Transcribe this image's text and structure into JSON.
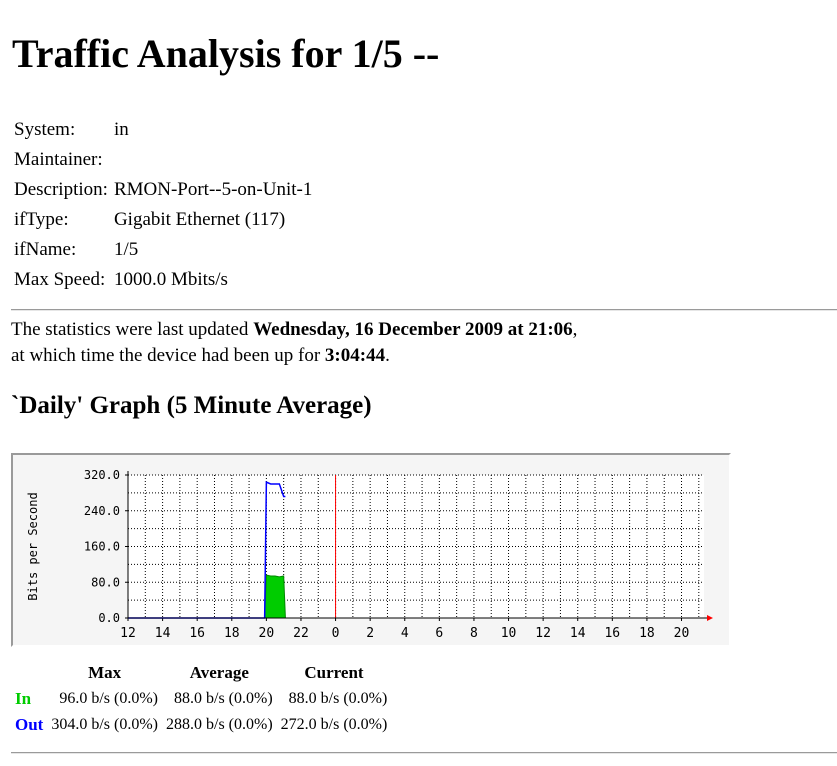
{
  "page": {
    "title": "Traffic Analysis for 1/5 --"
  },
  "info": {
    "rows": [
      {
        "label": "System:",
        "value": "in"
      },
      {
        "label": "Maintainer:",
        "value": ""
      },
      {
        "label": "Description:",
        "value": "RMON-Port--5-on-Unit-1"
      },
      {
        "label": "ifType:",
        "value": "Gigabit Ethernet (117)"
      },
      {
        "label": "ifName:",
        "value": "1/5"
      },
      {
        "label": "Max Speed:",
        "value": "1000.0 Mbits/s"
      }
    ]
  },
  "stats": {
    "line1_prefix": "The statistics were last updated ",
    "updated": "Wednesday, 16 December 2009 at 21:06",
    "line1_suffix": ",",
    "line2_prefix": "at which time the device had been up for ",
    "uptime": "3:04:44",
    "line2_suffix": "."
  },
  "graph": {
    "heading": "`Daily' Graph (5 Minute Average)"
  },
  "colors": {
    "in": "#00cc00",
    "out": "#0000ff",
    "grid": "#000000",
    "day_marker": "#ff0000",
    "background": "#ffffff",
    "frame": "#f5f5f5"
  },
  "chart_data": {
    "type": "area",
    "ylabel": "Bits per Second",
    "ylim": [
      0,
      320
    ],
    "yticks": [
      "0.0",
      "80.0",
      "160.0",
      "240.0",
      "320.0"
    ],
    "xticks": [
      "12",
      "14",
      "16",
      "18",
      "20",
      "22",
      "0",
      "2",
      "4",
      "6",
      "8",
      "10",
      "12",
      "14",
      "16",
      "18",
      "20"
    ],
    "day_boundary_tick": "0",
    "grid": true,
    "x_hours": [
      12,
      19.9,
      20.0,
      20.25,
      20.5,
      20.75,
      21.0,
      21.1
    ],
    "series": [
      {
        "name": "In",
        "style": "filled-area",
        "values": [
          0,
          0,
          96,
          94,
          94,
          92,
          94,
          0
        ]
      },
      {
        "name": "Out",
        "style": "line",
        "values": [
          0,
          0,
          304,
          300,
          300,
          300,
          272,
          272
        ]
      }
    ]
  },
  "legend": {
    "headers": [
      "Max",
      "Average",
      "Current"
    ],
    "rows": [
      {
        "label": "In",
        "max": "96.0 b/s (0.0%)",
        "average": "88.0 b/s (0.0%)",
        "current": "88.0 b/s (0.0%)"
      },
      {
        "label": "Out",
        "max": "304.0 b/s (0.0%)",
        "average": "288.0 b/s (0.0%)",
        "current": "272.0 b/s (0.0%)"
      }
    ]
  }
}
